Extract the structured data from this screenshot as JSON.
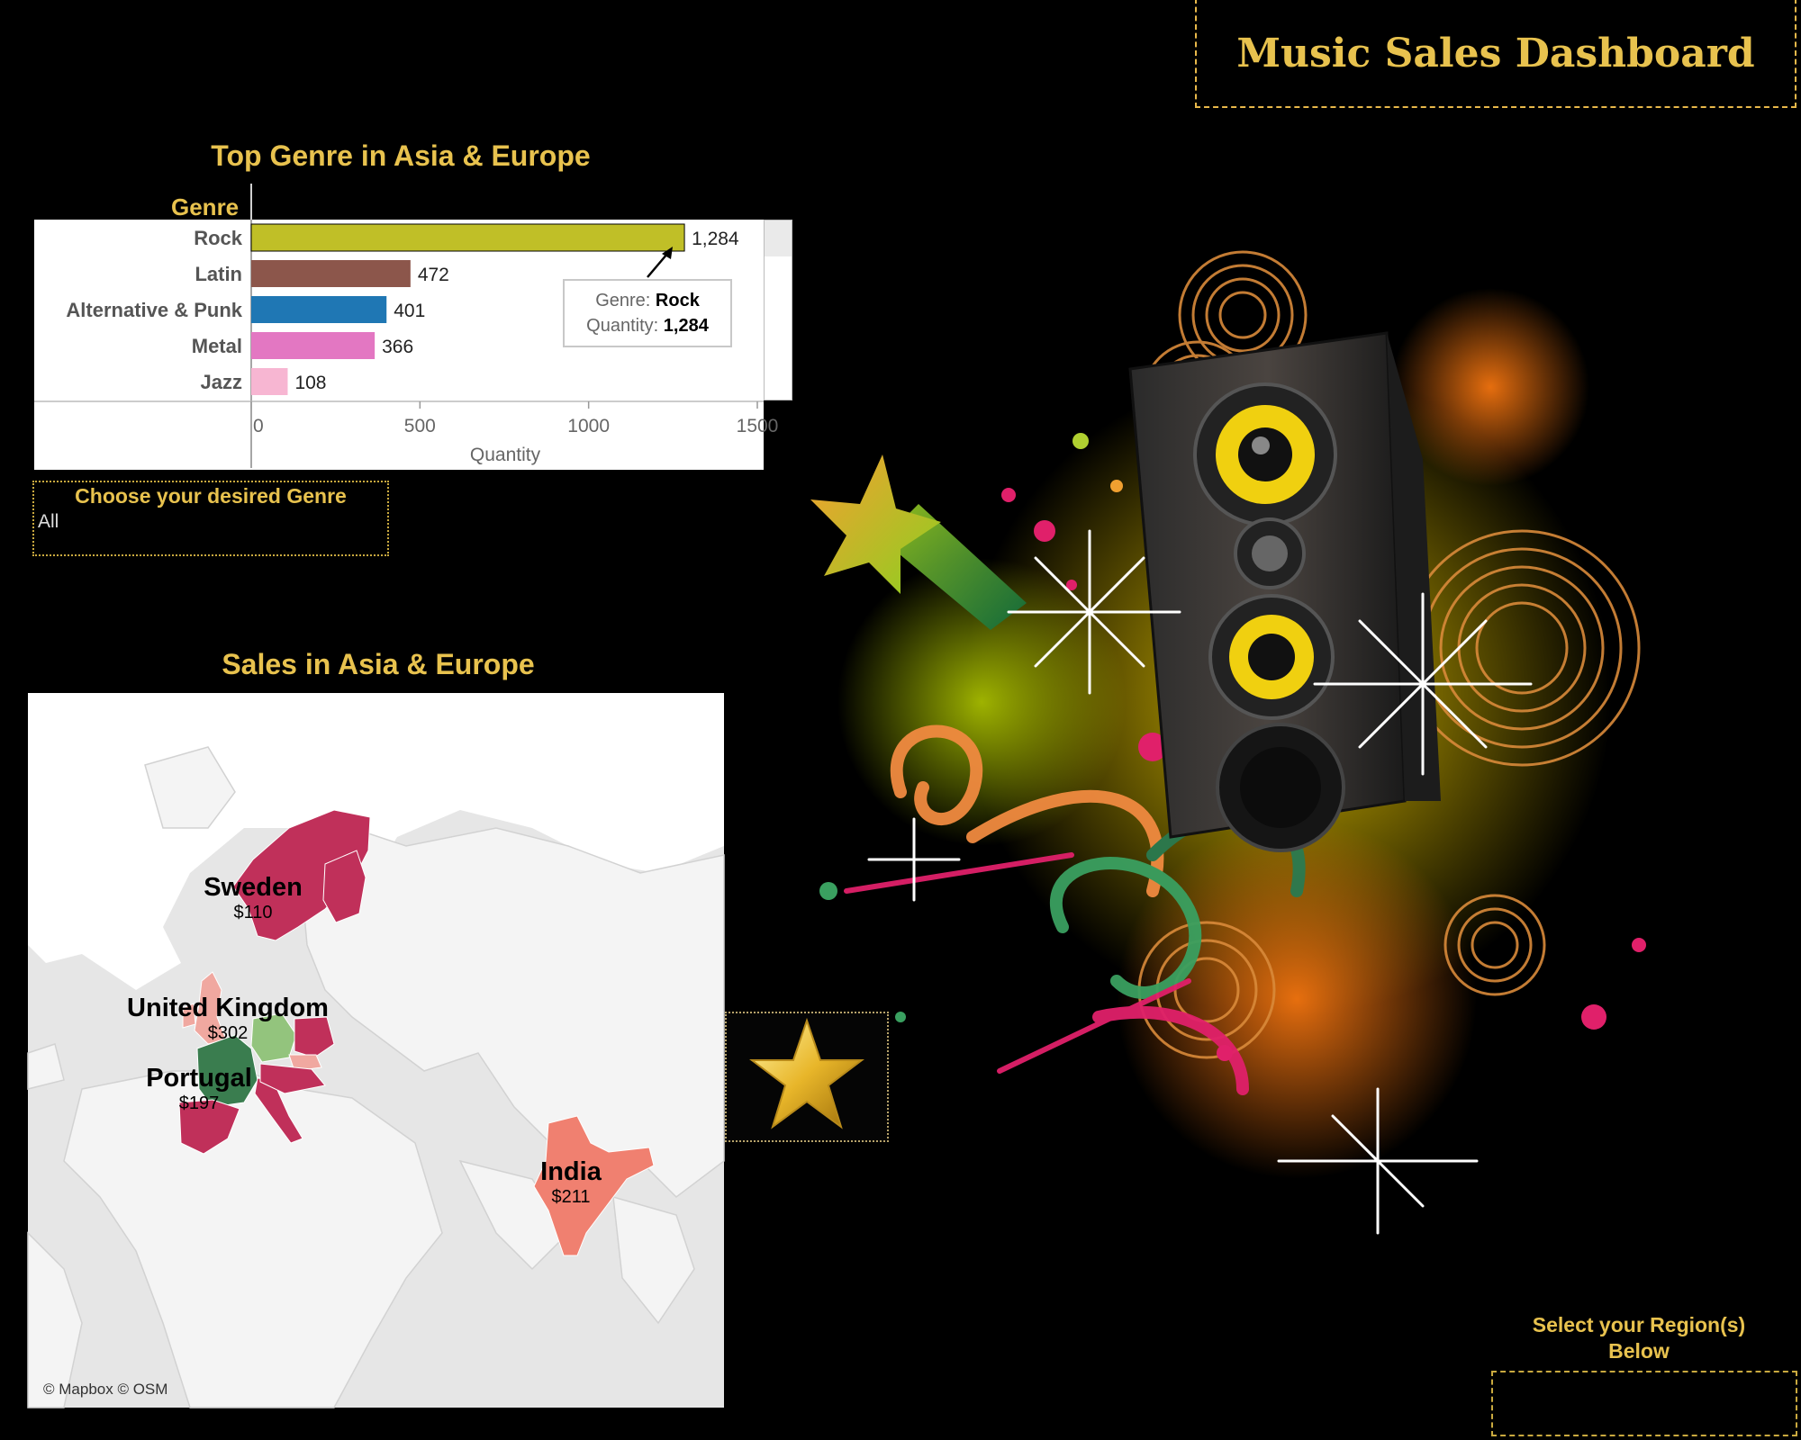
{
  "dashboard": {
    "title": "Music Sales Dashboard"
  },
  "genre_chart": {
    "title": "Top Genre in Asia & Europe",
    "row_header": "Genre",
    "tooltip": {
      "genre_label": "Genre:",
      "genre_value": "Rock",
      "quantity_label": "Quantity:",
      "quantity_value": "1,284"
    }
  },
  "genre_filter": {
    "label": "Choose your desired Genre",
    "value": "All"
  },
  "map": {
    "title": "Sales in Asia & Europe",
    "credit": "© Mapbox © OSM",
    "countries": [
      {
        "name": "Sweden",
        "sales": "$110"
      },
      {
        "name": "United Kingdom",
        "sales": "$302"
      },
      {
        "name": "Portugal",
        "sales": "$197"
      },
      {
        "name": "India",
        "sales": "$211"
      }
    ]
  },
  "region_filter": {
    "label_line1": "Select your Region(s)",
    "label_line2": "Below"
  },
  "colors": {
    "gold": "#e8c24e",
    "rock": "#c0bf27",
    "latin": "#8c564b",
    "alt_punk": "#1f77b4",
    "metal": "#e377c2",
    "jazz": "#f7b6d2"
  },
  "chart_data": {
    "type": "bar",
    "orientation": "horizontal",
    "title": "Top Genre in Asia & Europe",
    "ylabel": "Genre",
    "xlabel": "Quantity",
    "categories": [
      "Rock",
      "Latin",
      "Alternative & Punk",
      "Metal",
      "Jazz"
    ],
    "values": [
      1284,
      472,
      401,
      366,
      108
    ],
    "value_labels": [
      "1,284",
      "472",
      "401",
      "366",
      "108"
    ],
    "bar_colors": [
      "#c0bf27",
      "#8c564b",
      "#1f77b4",
      "#e377c2",
      "#f7b6d2"
    ],
    "xlim": [
      0,
      1500
    ],
    "xticks": [
      0,
      500,
      1000,
      1500
    ],
    "grid": false
  }
}
